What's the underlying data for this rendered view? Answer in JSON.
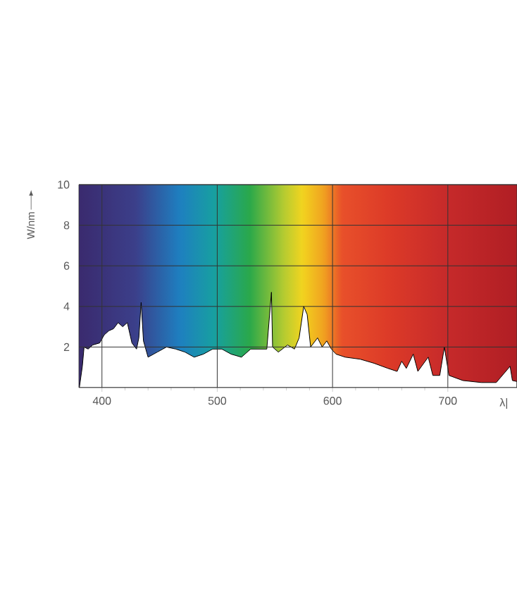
{
  "chart_data": {
    "type": "area",
    "ylabel": "W/nm",
    "xlabel": "λ|",
    "xlim": [
      380,
      760
    ],
    "ylim": [
      0,
      10
    ],
    "xticks": [
      400,
      500,
      600,
      700
    ],
    "yticks": [
      2,
      4,
      6,
      8,
      10
    ],
    "grid": true,
    "color": "#ffffff",
    "x": [
      380.4,
      383,
      384.5,
      388,
      392,
      398,
      402,
      406,
      410,
      414,
      418,
      422,
      426,
      430,
      432,
      434,
      436,
      440,
      448,
      456,
      464,
      472,
      480,
      488,
      496,
      504,
      512,
      521,
      529,
      537,
      543,
      547,
      548,
      553,
      561,
      567,
      571,
      575,
      578,
      581,
      587,
      591,
      595,
      599,
      603,
      611,
      624,
      636,
      648,
      656,
      660,
      664,
      670,
      674,
      683,
      687,
      693,
      697,
      701,
      713,
      729,
      742,
      754,
      756,
      760
    ],
    "values": [
      0,
      1.05,
      2.0,
      1.9,
      2.1,
      2.2,
      2.6,
      2.8,
      2.9,
      3.2,
      3.0,
      3.2,
      2.2,
      1.9,
      2.45,
      4.2,
      2.3,
      1.5,
      1.75,
      2.0,
      1.9,
      1.75,
      1.5,
      1.65,
      1.9,
      1.9,
      1.65,
      1.5,
      1.9,
      1.9,
      1.9,
      4.7,
      2.0,
      1.75,
      2.1,
      1.9,
      2.45,
      4.0,
      3.6,
      2.0,
      2.45,
      2.0,
      2.3,
      1.9,
      1.65,
      1.5,
      1.4,
      1.2,
      0.95,
      0.8,
      1.3,
      0.95,
      1.65,
      0.8,
      1.5,
      0.6,
      0.6,
      2.0,
      0.6,
      0.35,
      0.25,
      0.25,
      1.05,
      0.35,
      0.3
    ]
  }
}
